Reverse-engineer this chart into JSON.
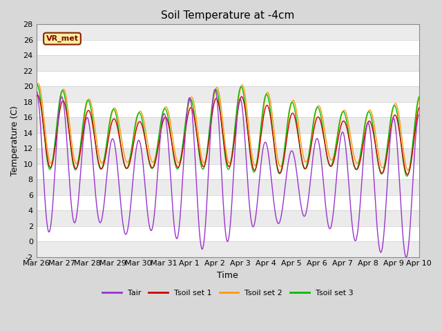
{
  "title": "Soil Temperature at -4cm",
  "xlabel": "Time",
  "ylabel": "Temperature (C)",
  "ylim": [
    -2,
    28
  ],
  "background_color": "#d8d8d8",
  "plot_bg_color": "#ffffff",
  "grid_color": "#cccccc",
  "legend_label": "VR_met",
  "legend_box_facecolor": "#f5f0a0",
  "legend_box_edgecolor": "#8b2000",
  "series_colors": {
    "Tair": "#9933cc",
    "Tsoil1": "#cc0000",
    "Tsoil2": "#ff9900",
    "Tsoil3": "#00bb00"
  },
  "legend_entries": [
    "Tair",
    "Tsoil set 1",
    "Tsoil set 2",
    "Tsoil set 3"
  ],
  "legend_colors": [
    "#9933cc",
    "#cc0000",
    "#ff9900",
    "#00bb00"
  ],
  "tick_labels": [
    "Mar 26",
    "Mar 27",
    "Mar 28",
    "Mar 29",
    "Mar 30",
    "Mar 31",
    "Apr 1",
    "Apr 2",
    "Apr 3",
    "Apr 4",
    "Apr 5",
    "Apr 6",
    "Apr 7",
    "Apr 8",
    "Apr 9",
    "Apr 10"
  ],
  "yticks": [
    -2,
    0,
    2,
    4,
    6,
    8,
    10,
    12,
    14,
    16,
    18,
    20,
    22,
    24,
    26,
    28
  ],
  "title_fontsize": 11,
  "axis_fontsize": 9,
  "tick_fontsize": 8,
  "linewidth": 1.0
}
